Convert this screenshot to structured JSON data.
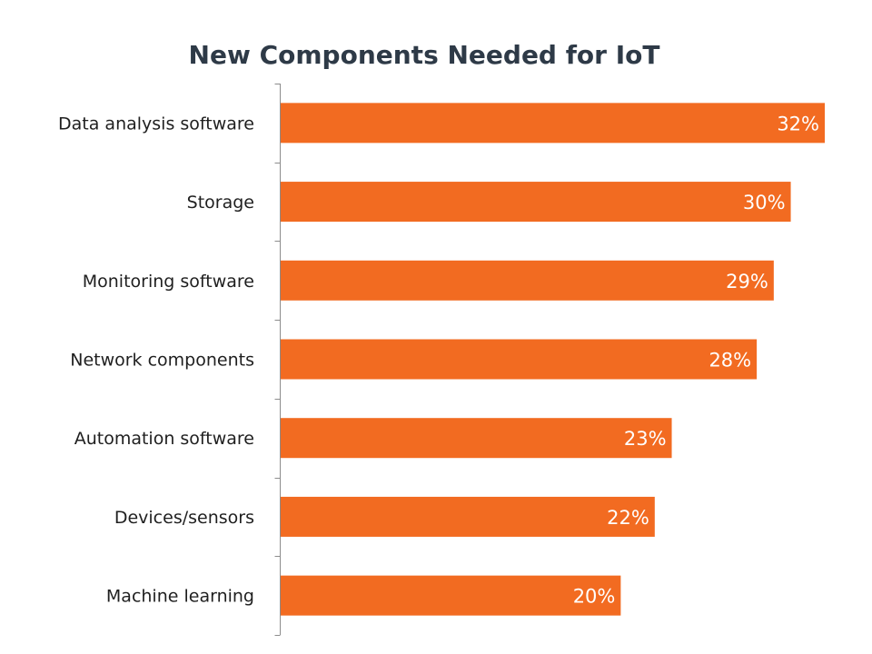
{
  "chart_data": {
    "type": "bar",
    "orientation": "horizontal",
    "title": "New Components Needed for IoT",
    "categories": [
      "Data analysis software",
      "Storage",
      "Monitoring software",
      "Network components",
      "Automation software",
      "Devices/sensors",
      "Machine learning"
    ],
    "values": [
      32,
      30,
      29,
      28,
      23,
      22,
      20
    ],
    "value_labels": [
      "32%",
      "30%",
      "29%",
      "28%",
      "23%",
      "22%",
      "20%"
    ],
    "unit": "%",
    "xlabel": "",
    "ylabel": "",
    "xlim": [
      0,
      32
    ],
    "grid": false,
    "legend": "none",
    "bar_color": "#f26b21"
  }
}
